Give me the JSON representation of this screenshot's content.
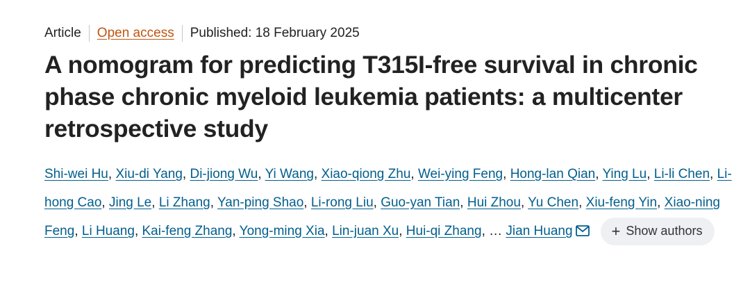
{
  "meta": {
    "type": "Article",
    "access": "Open access",
    "published": "Published: 18 February 2025"
  },
  "title": "A nomogram for predicting T315I-free survival in chronic phase chronic myeloid leukemia patients: a multicenter retrospective study",
  "authors": [
    "Shi-wei Hu",
    "Xiu-di Yang",
    "Di-jiong Wu",
    "Yi Wang",
    "Xiao-qiong Zhu",
    "Wei-ying Feng",
    "Hong-lan Qian",
    "Ying Lu",
    "Li-li Chen",
    "Li-hong Cao",
    "Jing Le",
    "Li Zhang",
    "Yan-ping Shao",
    "Li-rong Liu",
    "Guo-yan Tian",
    "Hui Zhou",
    "Yu Chen",
    "Xiu-feng Yin",
    "Xiao-ning Feng",
    "Li Huang",
    "Kai-feng Zhang",
    "Yong-ming Xia",
    "Lin-juan Xu",
    "Hui-qi Zhang"
  ],
  "ellipsis": "…",
  "corresponding_author": "Jian Huang",
  "corresponding_icon": "mail-icon",
  "show_authors": {
    "label": "Show authors",
    "icon": "plus-icon"
  },
  "colors": {
    "link": "#025e8d",
    "open_access": "#c05511",
    "button_bg": "#eef0f3"
  }
}
